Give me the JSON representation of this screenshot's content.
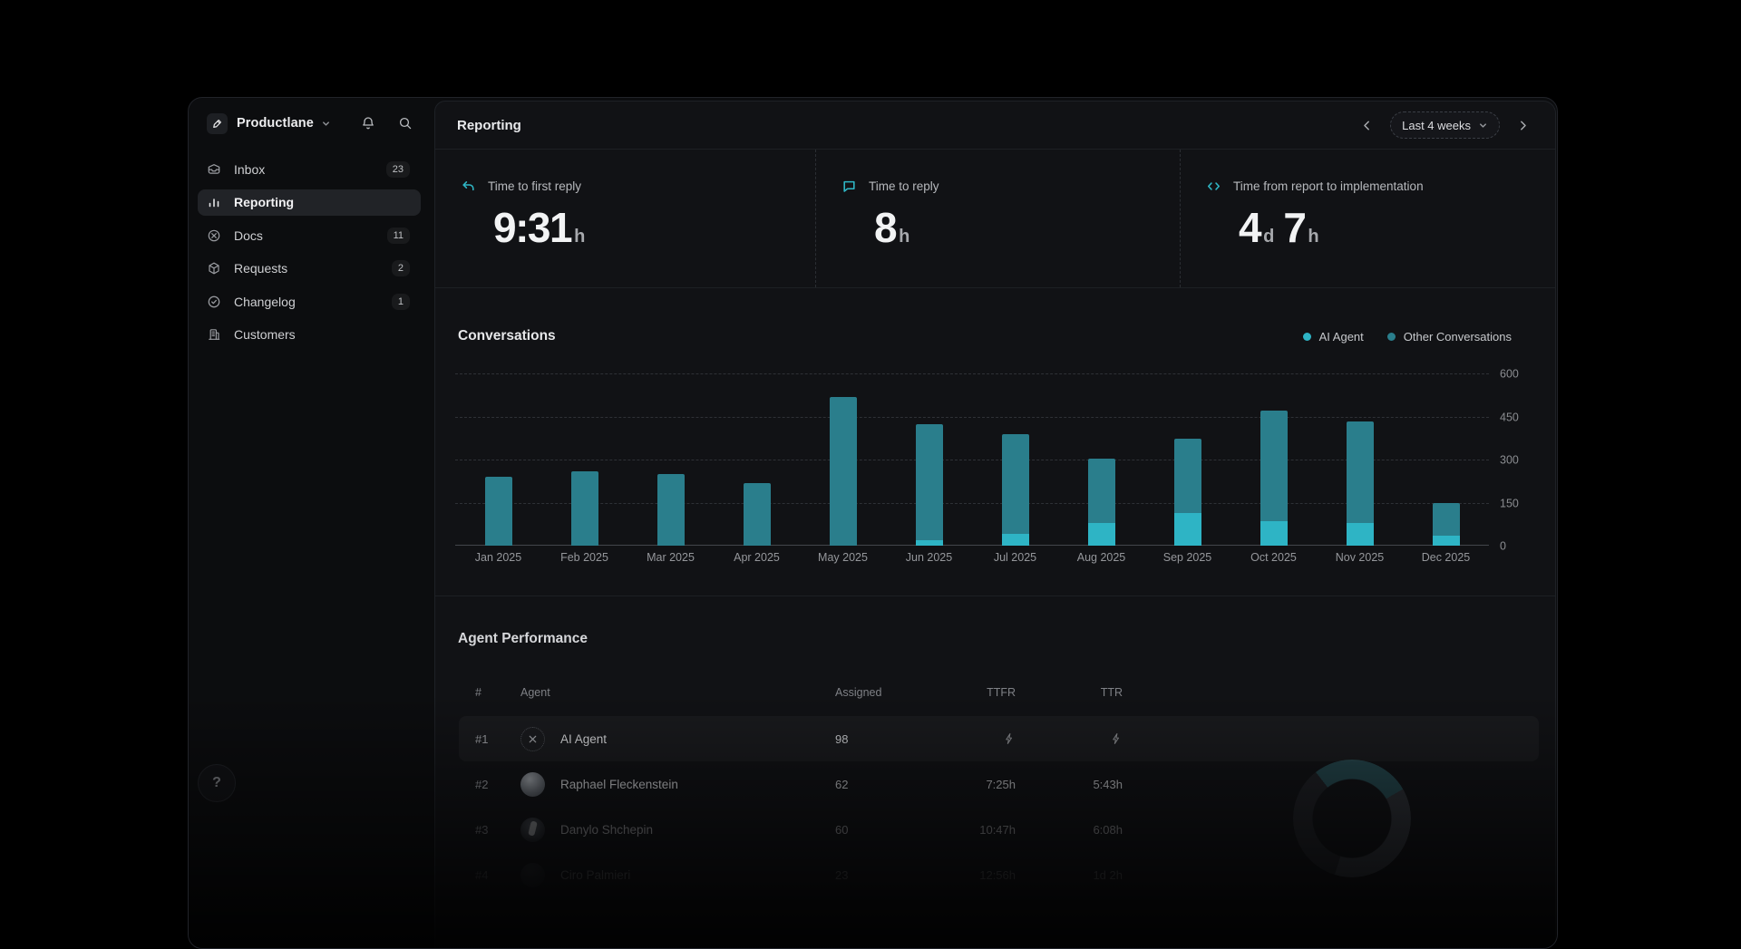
{
  "app": {
    "name": "Productlane"
  },
  "sidebar": {
    "items": [
      {
        "label": "Inbox",
        "badge": "23",
        "icon": "inbox-icon",
        "active": false
      },
      {
        "label": "Reporting",
        "badge": "",
        "icon": "bar-chart-icon",
        "active": true
      },
      {
        "label": "Docs",
        "badge": "11",
        "icon": "docs-icon",
        "active": false
      },
      {
        "label": "Requests",
        "badge": "2",
        "icon": "cube-icon",
        "active": false
      },
      {
        "label": "Changelog",
        "badge": "1",
        "icon": "changelog-icon",
        "active": false
      },
      {
        "label": "Customers",
        "badge": "",
        "icon": "customers-icon",
        "active": false
      }
    ],
    "help_label": "?"
  },
  "header": {
    "title": "Reporting",
    "period": "Last 4 weeks"
  },
  "stats": [
    {
      "icon": "reply-arrow-icon",
      "label": "Time to first reply",
      "parts": [
        {
          "num": "9:31",
          "unit": "h"
        }
      ]
    },
    {
      "icon": "chat-bubble-icon",
      "label": "Time to reply",
      "parts": [
        {
          "num": "8",
          "unit": "h"
        }
      ]
    },
    {
      "icon": "code-icon",
      "label": "Time from report to implementation",
      "parts": [
        {
          "num": "4",
          "unit": "d"
        },
        {
          "num": "7",
          "unit": "h"
        }
      ]
    }
  ],
  "chart_data": {
    "type": "bar",
    "stacked": true,
    "title": "Conversations",
    "categories": [
      "Jan 2025",
      "Feb 2025",
      "Mar 2025",
      "Apr 2025",
      "May 2025",
      "Jun 2025",
      "Jul 2025",
      "Aug 2025",
      "Sep 2025",
      "Oct 2025",
      "Nov 2025",
      "Dec 2025"
    ],
    "series": [
      {
        "name": "AI Agent",
        "color": "#2eb4c5",
        "values": [
          0,
          0,
          0,
          0,
          0,
          20,
          40,
          80,
          115,
          85,
          80,
          35
        ]
      },
      {
        "name": "Other Conversations",
        "color": "#2a7e8c",
        "values": [
          240,
          260,
          248,
          218,
          518,
          403,
          349,
          224,
          259,
          385,
          352,
          113
        ]
      }
    ],
    "xlabel": "",
    "ylabel": "",
    "ylim": [
      0,
      600
    ],
    "yticks": [
      600,
      450,
      300,
      150,
      0
    ],
    "grid": "dashed-horizontal",
    "legend_position": "top-right"
  },
  "table": {
    "title": "Agent Performance",
    "columns": [
      "#",
      "Agent",
      "Assigned",
      "TTFR",
      "TTR"
    ],
    "rows": [
      {
        "rank": "#1",
        "name": "AI Agent",
        "avatar": "ai",
        "assigned": "98",
        "ttfr": null,
        "ttr": null
      },
      {
        "rank": "#2",
        "name": "Raphael Fleckenstein",
        "avatar": "photo1",
        "assigned": "62",
        "ttfr": "7:25h",
        "ttr": "5:43h"
      },
      {
        "rank": "#3",
        "name": "Danylo Shchepin",
        "avatar": "photo2",
        "assigned": "60",
        "ttfr": "10:47h",
        "ttr": "6:08h"
      },
      {
        "rank": "#4",
        "name": "Ciro Palmieri",
        "avatar": "photo3",
        "assigned": "23",
        "ttfr": "12:56h",
        "ttr": "1d 2h"
      }
    ]
  },
  "colors": {
    "accent": "#2fb6c5",
    "bar_ai": "#2eb4c5",
    "bar_other": "#2a7e8c"
  }
}
